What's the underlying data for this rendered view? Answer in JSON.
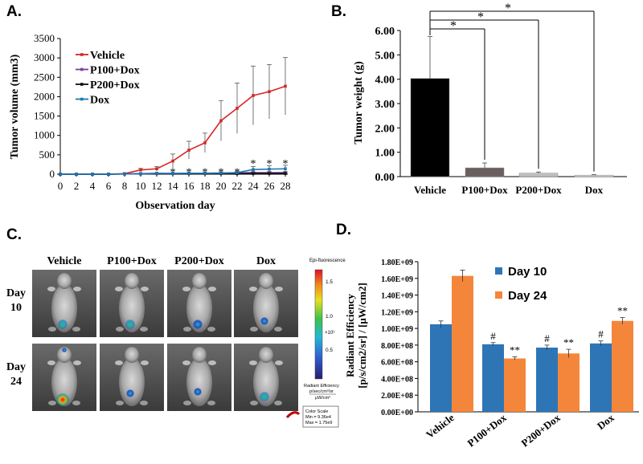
{
  "panels": {
    "a": "A.",
    "b": "B.",
    "c": "C.",
    "d": "D."
  },
  "chart_data": [
    {
      "id": "panel-a",
      "type": "line",
      "xlabel": "Observation day",
      "ylabel": "Tumor volume (mm3)",
      "xlim": [
        0,
        28
      ],
      "ylim": [
        0,
        3500
      ],
      "xticks": [
        0,
        2,
        4,
        6,
        8,
        10,
        12,
        14,
        16,
        18,
        20,
        22,
        24,
        26,
        28
      ],
      "yticks": [
        0,
        500,
        1000,
        1500,
        2000,
        2500,
        3000,
        3500
      ],
      "x": [
        0,
        2,
        4,
        6,
        8,
        10,
        12,
        14,
        16,
        18,
        20,
        22,
        24,
        26,
        28
      ],
      "series": [
        {
          "name": "Vehicle",
          "color": "#d62728",
          "values": [
            0,
            0,
            0,
            0,
            15,
            110,
            140,
            340,
            620,
            810,
            1380,
            1700,
            2030,
            2130,
            2270
          ],
          "errors": [
            0,
            0,
            0,
            0,
            10,
            40,
            60,
            180,
            230,
            250,
            520,
            650,
            760,
            700,
            740
          ]
        },
        {
          "name": "P100+Dox",
          "color": "#7b3f99",
          "values": [
            0,
            0,
            0,
            0,
            5,
            15,
            25,
            20,
            25,
            25,
            30,
            35,
            40,
            40,
            40
          ],
          "errors": [
            0,
            0,
            0,
            0,
            5,
            8,
            10,
            10,
            10,
            12,
            12,
            15,
            20,
            25,
            25
          ]
        },
        {
          "name": "P200+Dox",
          "color": "#111111",
          "values": [
            0,
            0,
            0,
            0,
            5,
            10,
            15,
            15,
            15,
            15,
            15,
            15,
            20,
            20,
            20
          ],
          "errors": [
            0,
            0,
            0,
            0,
            5,
            5,
            8,
            8,
            8,
            8,
            8,
            8,
            10,
            10,
            10
          ]
        },
        {
          "name": "Dox",
          "color": "#1f77b4",
          "values": [
            0,
            0,
            0,
            0,
            5,
            10,
            20,
            20,
            25,
            25,
            30,
            40,
            120,
            130,
            140
          ],
          "errors": [
            0,
            0,
            0,
            0,
            5,
            5,
            10,
            10,
            10,
            10,
            15,
            20,
            80,
            90,
            90
          ]
        }
      ],
      "annotations": [
        {
          "x": 14,
          "y": 110,
          "text": "*"
        },
        {
          "x": 16,
          "y": 110,
          "text": "*"
        },
        {
          "x": 18,
          "y": 110,
          "text": "*"
        },
        {
          "x": 20,
          "y": 110,
          "text": "*"
        },
        {
          "x": 22,
          "y": 110,
          "text": "*"
        },
        {
          "x": 24,
          "y": 330,
          "text": "*"
        },
        {
          "x": 26,
          "y": 330,
          "text": "*"
        },
        {
          "x": 28,
          "y": 330,
          "text": "*"
        }
      ],
      "legend": "top-left"
    },
    {
      "id": "panel-b",
      "type": "bar",
      "ylabel": "Tumor weight (g)",
      "ylim": [
        0,
        6
      ],
      "yticks": [
        "0.00",
        "1.00",
        "2.00",
        "3.00",
        "4.00",
        "5.00",
        "6.00"
      ],
      "categories": [
        "Vehicle",
        "P100+Dox",
        "P200+Dox",
        "Dox"
      ],
      "values": [
        4.03,
        0.36,
        0.14,
        0.06
      ],
      "errors": [
        1.72,
        0.2,
        0.05,
        0.02
      ],
      "colors": [
        "#000000",
        "#6b5e5e",
        "#bfbfbf",
        "#d9d9d9"
      ],
      "significance": [
        {
          "from": "Vehicle",
          "to": "P100+Dox",
          "text": "*"
        },
        {
          "from": "Vehicle",
          "to": "P200+Dox",
          "text": "*"
        },
        {
          "from": "Vehicle",
          "to": "Dox",
          "text": "*"
        }
      ]
    },
    {
      "id": "panel-d",
      "type": "bar",
      "ylabel_line1": "Radiant Efficiency",
      "ylabel_line2": "[p/s/cm2/sr] / [μW/cm2]",
      "ylim": [
        0,
        1800000000.0
      ],
      "yticks": [
        "0.00E+00",
        "2.00E+08",
        "4.00E+08",
        "6.00E+08",
        "8.00E+08",
        "1.00E+09",
        "1.20E+09",
        "1.40E+09",
        "1.60E+09",
        "1.80E+09"
      ],
      "categories": [
        "Vehicle",
        "P100+Dox",
        "P200+Dox",
        "Dox"
      ],
      "series": [
        {
          "name": "Day 10",
          "color": "#2e75b6",
          "values": [
            1050000000.0,
            810000000.0,
            770000000.0,
            820000000.0
          ],
          "errors": [
            40000000.0,
            20000000.0,
            30000000.0,
            30000000.0
          ],
          "marks": [
            "",
            "#",
            "#",
            "#"
          ]
        },
        {
          "name": "Day 24",
          "color": "#f4863b",
          "values": [
            1630000000.0,
            640000000.0,
            700000000.0,
            1090000000.0
          ],
          "errors": [
            70000000.0,
            20000000.0,
            50000000.0,
            40000000.0
          ],
          "marks": [
            "",
            "**",
            "**",
            "**"
          ]
        }
      ],
      "legend": "top-right"
    }
  ],
  "imaging": {
    "columns": [
      "Vehicle",
      "P100+Dox",
      "P200+Dox",
      "Dox"
    ],
    "rows": [
      {
        "line1": "Day",
        "line2": "10"
      },
      {
        "line1": "Day",
        "line2": "24"
      }
    ],
    "colorbar_title": "Epi-fluorescence",
    "colorbar_ticks": [
      "1.5",
      "1.0",
      "0.5"
    ],
    "colorbar_exponent": "×10⁹",
    "units_line1": "Radiant Efficiency",
    "units_line2": "p/sec/cm²/sr",
    "units_line3": "μW/cm²",
    "scale_title": "Color Scale",
    "scale_min": "Min = 9.36e4",
    "scale_max": "Max = 1.75e9"
  }
}
